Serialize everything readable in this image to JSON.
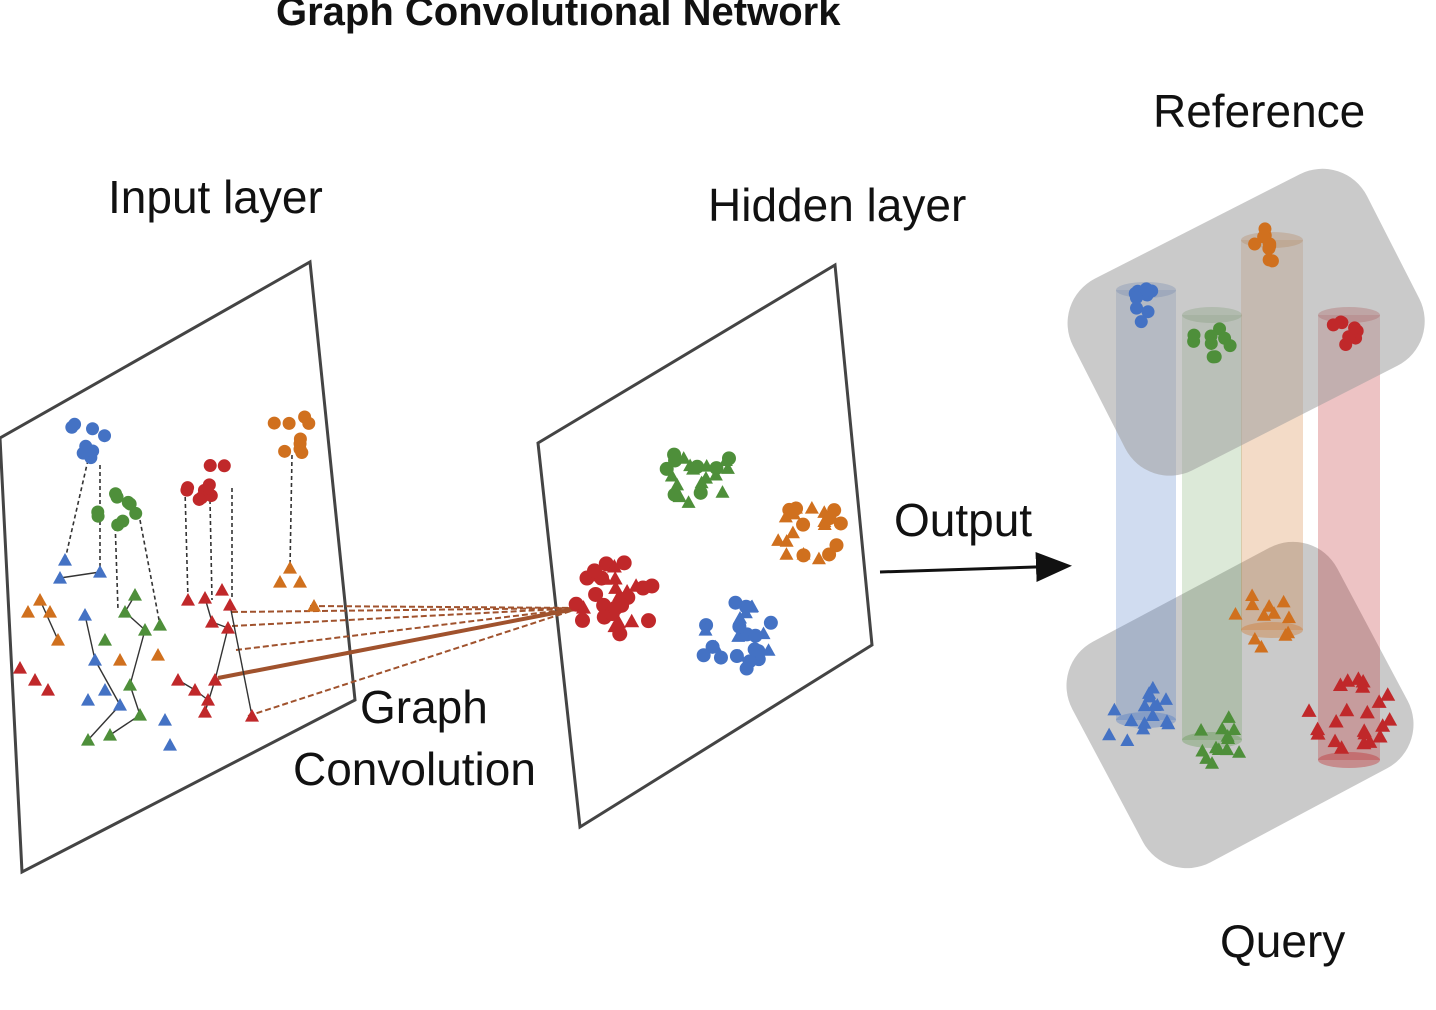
{
  "title": "Graph Convolutional Network",
  "labels": {
    "input_layer": "Input layer",
    "hidden_layer": "Hidden layer",
    "graph": "Graph",
    "convolution": "Convolution",
    "output": "Output",
    "reference": "Reference",
    "query": "Query"
  },
  "colors": {
    "blue": "#4472C4",
    "green": "#4E8F3A",
    "orange": "#D0701E",
    "red": "#C0282A",
    "panel_gray": "#B8B8B8",
    "connector": "#A0522D"
  },
  "groups": [
    "blue",
    "green",
    "orange",
    "red"
  ]
}
